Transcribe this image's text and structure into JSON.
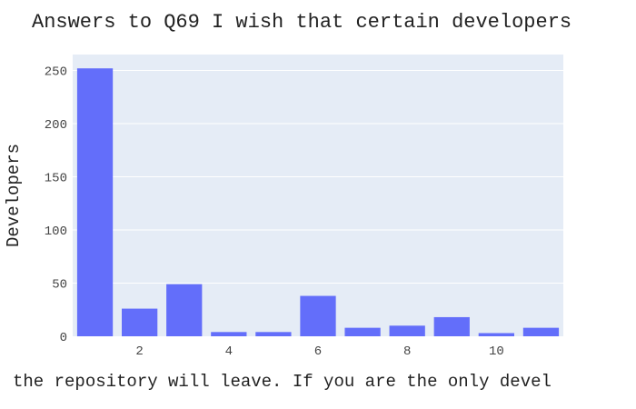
{
  "chart_data": {
    "type": "bar",
    "title": "Answers to Q69 I wish that certain developers",
    "xlabel": "the repository will leave. If you are the only devel",
    "ylabel": "Developers",
    "x": [
      1,
      2,
      3,
      4,
      5,
      6,
      7,
      8,
      9,
      10,
      11
    ],
    "values": [
      252,
      26,
      49,
      4,
      4,
      38,
      8,
      10,
      18,
      3,
      8
    ],
    "x_ticks": [
      2,
      4,
      6,
      8,
      10
    ],
    "y_ticks": [
      0,
      50,
      100,
      150,
      200,
      250
    ],
    "xlim": [
      0.5,
      11.5
    ],
    "ylim": [
      0,
      265
    ],
    "grid": true,
    "colors": {
      "bar": "#636efa",
      "plot_background": "#e5ecf6",
      "grid": "#ffffff"
    }
  }
}
